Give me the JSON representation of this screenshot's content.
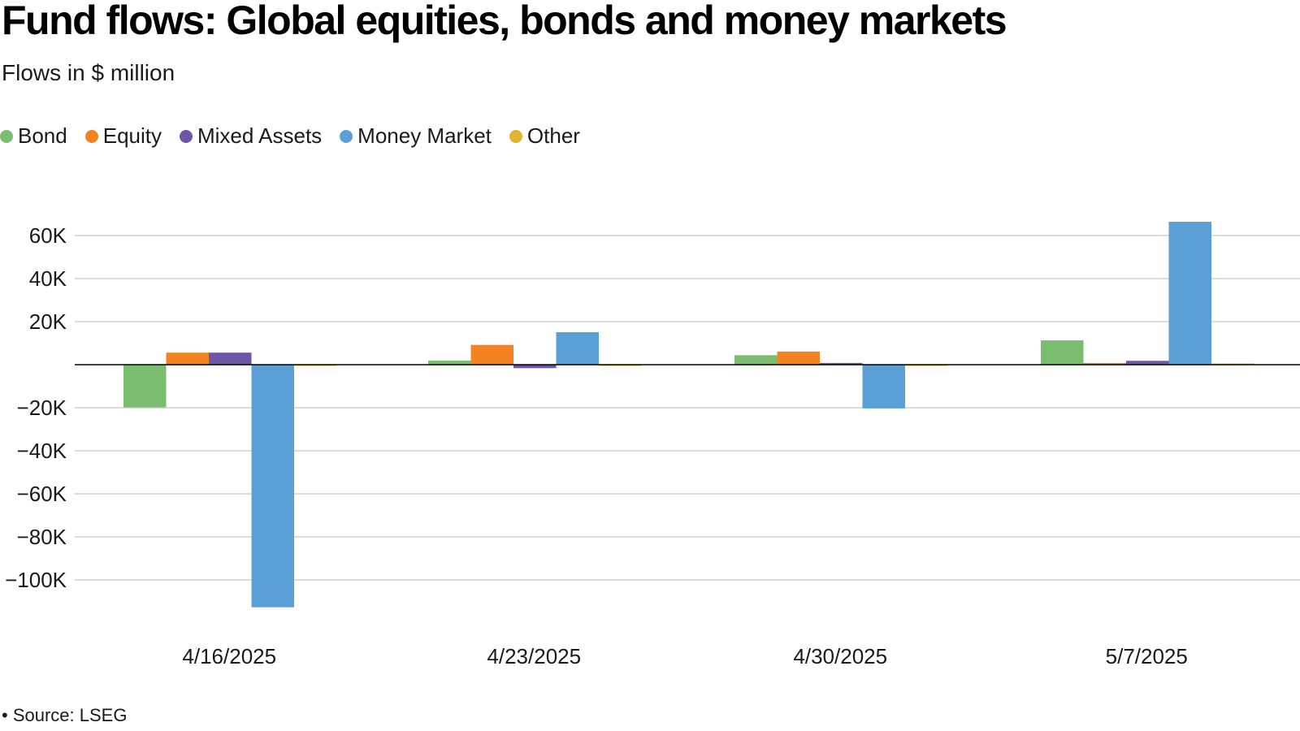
{
  "header": {
    "title": "Fund flows: Global equities, bonds and money markets",
    "subtitle": "Flows in $ million"
  },
  "footer": {
    "source": "• Source: LSEG"
  },
  "chart_data": {
    "type": "bar",
    "title": "Fund flows: Global equities, bonds and money markets",
    "subtitle": "Flows in $ million",
    "xlabel": "",
    "ylabel": "",
    "categories": [
      "4/16/2025",
      "4/23/2025",
      "4/30/2025",
      "5/7/2025"
    ],
    "series": [
      {
        "name": "Bond",
        "color": "#7bbd6e",
        "values": [
          -19800,
          1900,
          4400,
          11300
        ]
      },
      {
        "name": "Equity",
        "color": "#f58220",
        "values": [
          5600,
          9200,
          6100,
          800
        ]
      },
      {
        "name": "Mixed Assets",
        "color": "#6d55a8",
        "values": [
          5600,
          -1600,
          800,
          1800
        ]
      },
      {
        "name": "Money Market",
        "color": "#5aa0d6",
        "values": [
          -112700,
          15100,
          -20300,
          66400
        ]
      },
      {
        "name": "Other",
        "color": "#e3b42a",
        "values": [
          -300,
          -400,
          -300,
          200
        ]
      }
    ],
    "yticks": [
      60000,
      40000,
      20000,
      -20000,
      -40000,
      -60000,
      -80000,
      -100000
    ],
    "ytick_labels": [
      "60K",
      "40K",
      "20K",
      "−20K",
      "−40K",
      "−60K",
      "−80K",
      "−100K"
    ],
    "ylim": [
      -120000,
      70000
    ],
    "grid": true,
    "legend_position": "top-left"
  }
}
